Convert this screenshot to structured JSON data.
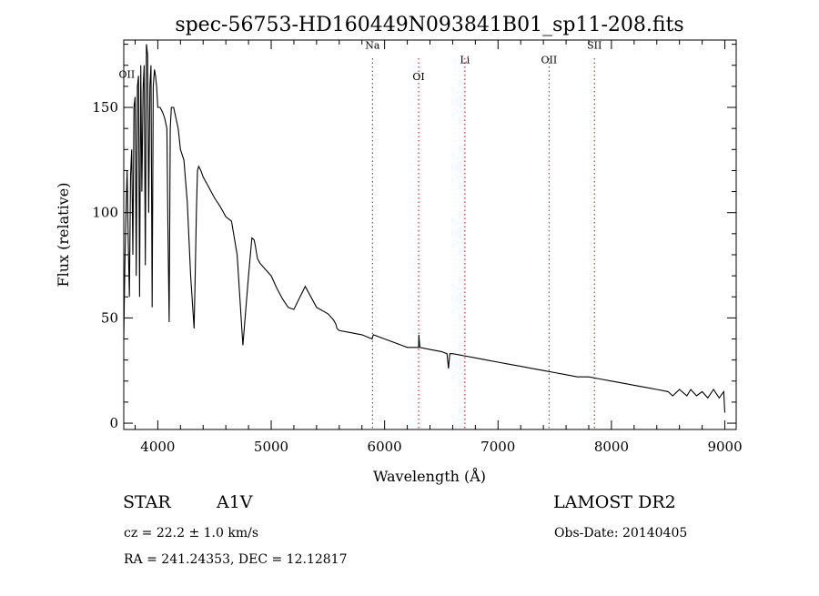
{
  "chart_data": {
    "type": "line",
    "title": "spec-56753-HD160449N093841B01_sp11-208.fits",
    "xlabel": "Wavelength (Å)",
    "ylabel": "Flux (relative)",
    "xlim": [
      3700,
      9100
    ],
    "ylim": [
      -3,
      182
    ],
    "x_ticks": [
      4000,
      5000,
      6000,
      7000,
      8000,
      9000
    ],
    "y_ticks": [
      0,
      50,
      100,
      150
    ],
    "grid": false,
    "series": [
      {
        "x": [
          3700,
          3710,
          3720,
          3730,
          3740,
          3750,
          3760,
          3770,
          3780,
          3790,
          3800,
          3810,
          3820,
          3830,
          3840,
          3850,
          3860,
          3870,
          3880,
          3890,
          3900,
          3910,
          3920,
          3930,
          3940,
          3950,
          3960,
          3970,
          3980,
          3990,
          4000,
          4020,
          4040,
          4060,
          4080,
          4090,
          4100,
          4110,
          4120,
          4140,
          4160,
          4180,
          4200,
          4230,
          4260,
          4290,
          4320,
          4330,
          4340,
          4350,
          4360,
          4380,
          4400,
          4450,
          4500,
          4550,
          4600,
          4650,
          4700,
          4750,
          4800,
          4830,
          4850,
          4861,
          4870,
          4880,
          4900,
          4950,
          5000,
          5050,
          5100,
          5150,
          5200,
          5300,
          5400,
          5500,
          5550,
          5570,
          5580,
          5600,
          5700,
          5800,
          5890,
          5900,
          6000,
          6100,
          6200,
          6300,
          6302,
          6310,
          6400,
          6500,
          6550,
          6563,
          6575,
          6600,
          6700,
          6800,
          6900,
          7000,
          7100,
          7200,
          7300,
          7400,
          7500,
          7600,
          7700,
          7800,
          7900,
          8000,
          8100,
          8200,
          8300,
          8400,
          8500,
          8540,
          8600,
          8665,
          8700,
          8750,
          8800,
          8850,
          8900,
          8950,
          8990,
          9000
        ],
        "y": [
          40,
          75,
          100,
          120,
          85,
          60,
          118,
          130,
          80,
          150,
          155,
          70,
          160,
          165,
          60,
          170,
          110,
          158,
          170,
          75,
          180,
          175,
          100,
          160,
          170,
          55,
          160,
          168,
          165,
          160,
          150,
          150,
          148,
          145,
          140,
          90,
          48,
          140,
          150,
          150,
          145,
          140,
          130,
          125,
          105,
          70,
          45,
          70,
          100,
          120,
          122,
          120,
          117,
          112,
          107,
          103,
          98,
          96,
          80,
          37,
          70,
          88,
          87,
          84,
          81,
          78,
          76,
          73,
          70,
          64,
          59,
          55,
          54,
          65,
          55,
          52,
          49,
          47,
          45,
          44,
          43,
          42,
          40,
          42,
          40,
          38,
          36,
          36,
          42,
          36,
          35,
          34,
          33,
          26,
          33,
          33,
          32,
          31,
          30,
          29,
          28,
          27,
          26,
          25,
          24,
          23,
          22,
          22,
          21,
          20,
          19,
          18,
          17,
          16,
          15,
          13,
          16,
          13,
          16,
          13,
          15,
          12,
          16,
          12,
          15,
          5
        ]
      }
    ],
    "line_markers": [
      {
        "name": "OII",
        "x": 3727,
        "label_y": 164
      },
      {
        "name": "Na",
        "x": 5893,
        "label_y": 178
      },
      {
        "name": "OI",
        "x": 6300,
        "label_y": 163
      },
      {
        "name": "Li",
        "x": 6708,
        "label_y": 171
      },
      {
        "name": "OII",
        "x": 7450,
        "label_y": 171
      },
      {
        "name": "SII",
        "x": 7850,
        "label_y": 178
      }
    ],
    "marker_color": "#dd0000"
  },
  "footer": {
    "object_type": "STAR",
    "subclass": "A1V",
    "survey": "LAMOST DR2",
    "redshift": "cz = 22.2 ± 1.0 km/s",
    "obs_date": "Obs-Date: 20140405",
    "coords": "RA = 241.24353, DEC =  12.12817"
  }
}
